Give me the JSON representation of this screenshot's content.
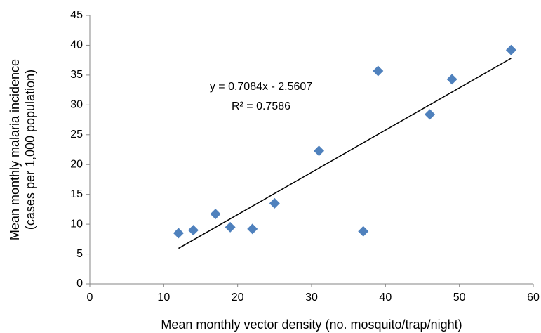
{
  "chart_data": {
    "type": "scatter",
    "x_label": "Mean monthly vector density (no. mosquito/trap/night)",
    "y_label": [
      "Mean monthly malaria incidence",
      "(cases per 1,000 population)"
    ],
    "x": [
      12,
      14,
      17,
      19,
      22,
      25,
      31,
      37,
      39,
      46,
      49,
      57
    ],
    "values": [
      8.5,
      9.0,
      11.7,
      9.5,
      9.2,
      13.5,
      22.3,
      8.8,
      35.7,
      28.4,
      34.3,
      39.2
    ],
    "color": "#4f81bd",
    "xlim": [
      0,
      60
    ],
    "xticks": [
      0,
      10,
      20,
      30,
      40,
      50,
      60
    ],
    "ylim": [
      0,
      45
    ],
    "yticks": [
      0,
      5,
      10,
      15,
      20,
      25,
      30,
      35,
      40,
      45
    ],
    "grid": false,
    "trendline": {
      "slope": 0.7084,
      "intercept": -2.5607,
      "equation": "y = 0.7084x - 2.5607",
      "r_squared": "R² = 0.7586"
    }
  }
}
